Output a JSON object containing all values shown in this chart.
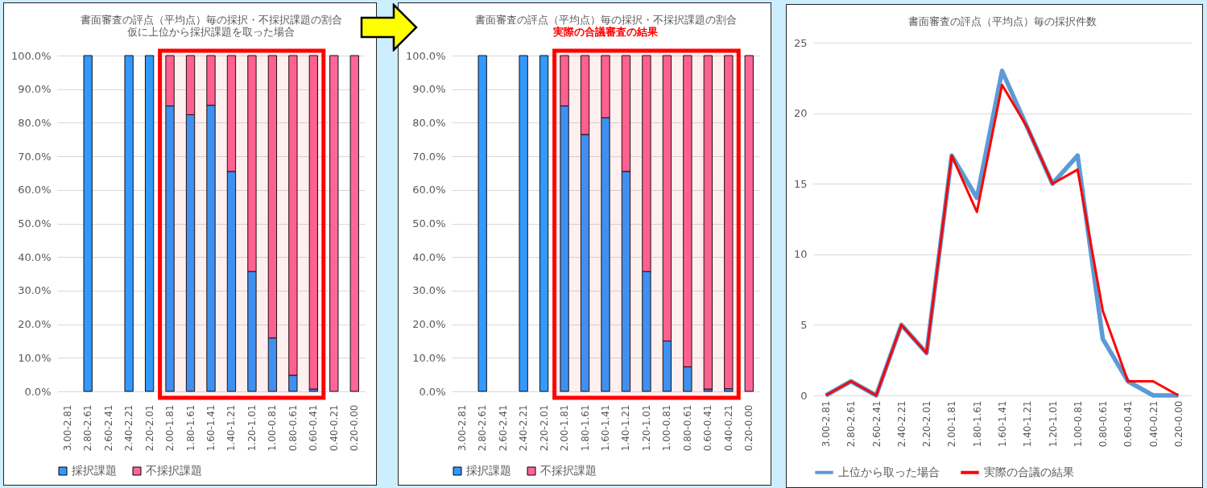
{
  "chart_data": [
    {
      "type": "bar",
      "title": "書面審査の評点（平均点）毎の採択・不採択課題の割合",
      "subtitle": "仮に上位から採択課題を取った場合",
      "categories": [
        "3.00-2.81",
        "2.80-2.61",
        "2.60-2.41",
        "2.40-2.21",
        "2.20-2.01",
        "2.00-1.81",
        "1.80-1.61",
        "1.60-1.41",
        "1.40-1.21",
        "1.20-1.01",
        "1.00-0.81",
        "0.80-0.61",
        "0.60-0.41",
        "0.40-0.21",
        "0.20-0.00"
      ],
      "series": [
        {
          "name": "採択課題",
          "color": "#3399ff",
          "values": [
            null,
            100,
            null,
            100,
            100,
            85,
            82.4,
            85.2,
            65.5,
            35.7,
            15.9,
            4.8,
            0.7,
            0,
            0
          ]
        },
        {
          "name": "不採択課題",
          "color": "#ff6699",
          "values": [
            null,
            0,
            null,
            0,
            0,
            15,
            17.6,
            14.8,
            34.5,
            64.3,
            84.1,
            95.2,
            99.3,
            100,
            100
          ]
        }
      ],
      "stacked": true,
      "ylim": [
        0,
        100
      ],
      "yticks": [
        {
          "value": 0,
          "label": "0.0%"
        },
        {
          "value": 10,
          "label": "10.0%"
        },
        {
          "value": 20,
          "label": "20.0%"
        },
        {
          "value": 30,
          "label": "30.0%"
        },
        {
          "value": 40,
          "label": "40.0%"
        },
        {
          "value": 50,
          "label": "50.0%"
        },
        {
          "value": 60,
          "label": "60.0%"
        },
        {
          "value": 70,
          "label": "70.0%"
        },
        {
          "value": 80,
          "label": "80.0%"
        },
        {
          "value": 90,
          "label": "90.0%"
        },
        {
          "value": 100,
          "label": "100.0%"
        }
      ],
      "bands": [
        {
          "axis": "x",
          "from": "2.00-1.81",
          "to": "0.60-0.41",
          "color": "#ff0000"
        }
      ],
      "grid": "y",
      "legend": "bottom"
    },
    {
      "type": "bar",
      "title": "書面審査の評点（平均点）毎の採択・不採択課題の割合",
      "subtitle": "実際の合議審査の結果",
      "categories": [
        "3.00-2.81",
        "2.80-2.61",
        "2.60-2.41",
        "2.40-2.21",
        "2.20-2.01",
        "2.00-1.81",
        "1.80-1.61",
        "1.60-1.41",
        "1.40-1.21",
        "1.20-1.01",
        "1.00-0.81",
        "0.80-0.61",
        "0.60-0.41",
        "0.40-0.21",
        "0.20-0.00"
      ],
      "series": [
        {
          "name": "採択課題",
          "color": "#3399ff",
          "values": [
            null,
            100,
            null,
            100,
            100,
            85,
            76.5,
            81.5,
            65.5,
            35.7,
            15,
            7.3,
            0.7,
            0.8,
            0
          ]
        },
        {
          "name": "不採択課題",
          "color": "#ff6699",
          "values": [
            null,
            0,
            null,
            0,
            0,
            15,
            23.5,
            18.5,
            34.5,
            64.3,
            85,
            92.7,
            99.3,
            99.2,
            100
          ]
        }
      ],
      "stacked": true,
      "ylim": [
        0,
        100
      ],
      "yticks": [
        {
          "value": 0,
          "label": "0.0%"
        },
        {
          "value": 10,
          "label": "10.0%"
        },
        {
          "value": 20,
          "label": "20.0%"
        },
        {
          "value": 30,
          "label": "30.0%"
        },
        {
          "value": 40,
          "label": "40.0%"
        },
        {
          "value": 50,
          "label": "50.0%"
        },
        {
          "value": 60,
          "label": "60.0%"
        },
        {
          "value": 70,
          "label": "70.0%"
        },
        {
          "value": 80,
          "label": "80.0%"
        },
        {
          "value": 90,
          "label": "90.0%"
        },
        {
          "value": 100,
          "label": "100.0%"
        }
      ],
      "bands": [
        {
          "axis": "x",
          "from": "2.00-1.81",
          "to": "0.40-0.21",
          "color": "#ff0000"
        }
      ],
      "grid": "y",
      "legend": "bottom"
    },
    {
      "type": "line",
      "title": "書面審査の評点（平均点）毎の採択件数",
      "categories": [
        "3.00-2.81",
        "2.80-2.61",
        "2.60-2.41",
        "2.40-2.21",
        "2.20-2.01",
        "2.00-1.81",
        "1.80-1.61",
        "1.60-1.41",
        "1.40-1.21",
        "1.20-1.01",
        "1.00-0.81",
        "0.80-0.61",
        "0.60-0.41",
        "0.40-0.21",
        "0.20-0.00"
      ],
      "series": [
        {
          "name": "上位から取った場合",
          "color": "#5b9bd5",
          "values": [
            0,
            1,
            0,
            5,
            3,
            17,
            14,
            23,
            19,
            15,
            17,
            4,
            1,
            0,
            0
          ]
        },
        {
          "name": "実際の合議の結果",
          "color": "#ff0000",
          "values": [
            0,
            1,
            0,
            5,
            3,
            17,
            13,
            22,
            19,
            15,
            16,
            6,
            1,
            1,
            0
          ]
        }
      ],
      "ylim": [
        0,
        25
      ],
      "yticks": [
        0,
        5,
        10,
        15,
        20,
        25
      ],
      "grid": "y",
      "legend": "bottom",
      "marker": "none"
    }
  ]
}
